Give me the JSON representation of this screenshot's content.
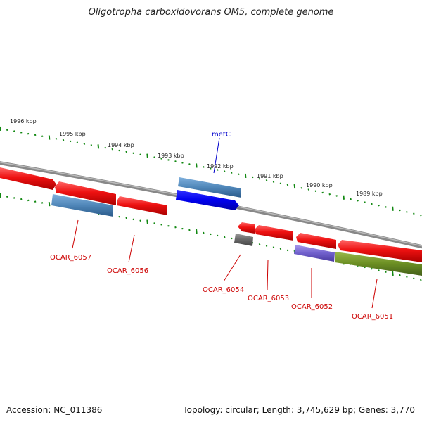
{
  "title": "Oligotropha carboxidovorans OM5, complete genome",
  "footer": {
    "accession": "Accession: NC_011386",
    "summary": "Topology: circular; Length: 3,745,629 bp; Genes: 3,770"
  },
  "colors": {
    "backbone": "#888888",
    "tick": "#118811",
    "forward_red": "#ee1111",
    "reverse_red": "#ee1111",
    "label_red": "#cc0000",
    "label_blue": "#0000cc",
    "steel_blue": "#4f86b8",
    "bright_blue": "#0000ee",
    "gray": "#666666",
    "purple": "#7060cc",
    "olive": "#6b8e23"
  },
  "kbp_labels": [
    "1996 kbp",
    "1995 kbp",
    "1994 kbp",
    "1993 kbp",
    "1992 kbp",
    "1991 kbp",
    "1990 kbp",
    "1989 kbp"
  ],
  "genes": [
    {
      "name": "metC",
      "color": "blue"
    },
    {
      "name": "OCAR_6057",
      "color": "red"
    },
    {
      "name": "OCAR_6056",
      "color": "red"
    },
    {
      "name": "OCAR_6054",
      "color": "red"
    },
    {
      "name": "OCAR_6053",
      "color": "red"
    },
    {
      "name": "OCAR_6052",
      "color": "red"
    },
    {
      "name": "OCAR_6051",
      "color": "red"
    }
  ]
}
